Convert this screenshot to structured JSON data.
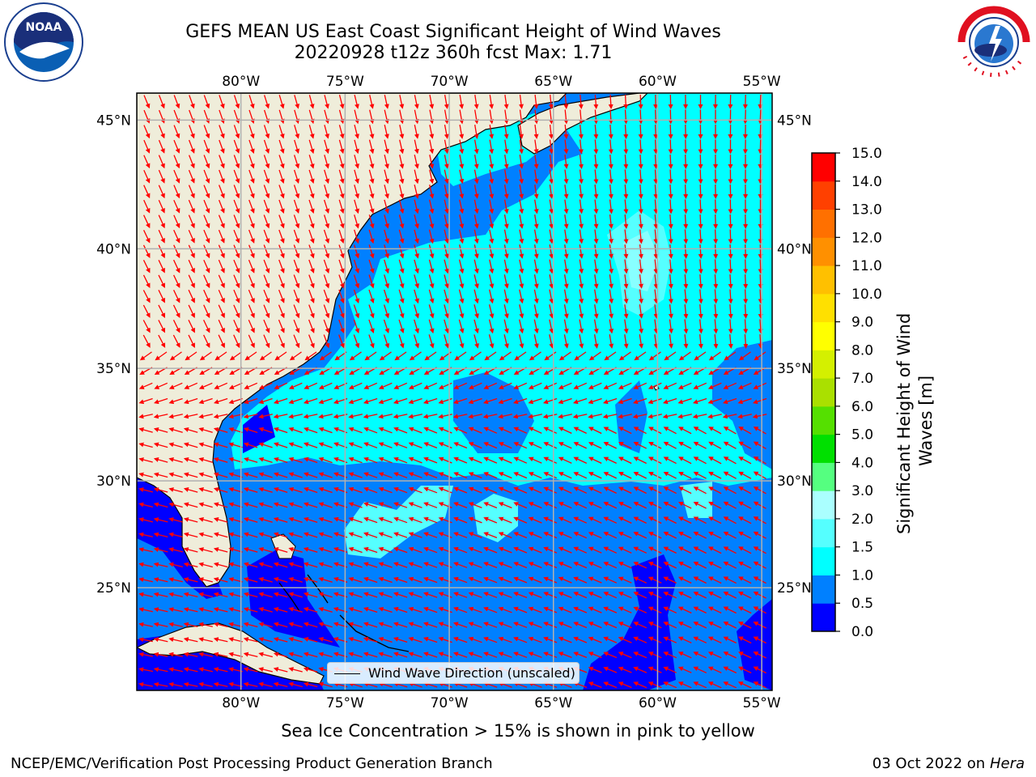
{
  "title": {
    "line1": "GEFS MEAN US East Coast Significant Height of Wind Waves",
    "line2": "20220928 t12z 360h fcst   Max: 1.71"
  },
  "logos": {
    "left": "noaa-logo",
    "right": "nws-logo"
  },
  "map": {
    "lon_labels": [
      "80°W",
      "75°W",
      "70°W",
      "65°W",
      "60°W",
      "55°W"
    ],
    "lat_labels": [
      "45°N",
      "40°N",
      "35°N",
      "30°N",
      "25°N"
    ],
    "lon_range": [
      -85,
      -54.5
    ],
    "lat_range": [
      20,
      46
    ],
    "colors": {
      "land": "#efedda",
      "lt05": "#0000ff",
      "lt10": "#0080ff",
      "lt15": "#00ffff",
      "lt20": "#55ffff",
      "arrows": "#ff0000",
      "grid": "#b0b0b0"
    },
    "legend_text": "Wind Wave Direction (unscaled)"
  },
  "colorbar": {
    "label_line1": "Significant Height of Wind",
    "label_line2": "Waves [m]",
    "ticks": [
      "0.0",
      "0.5",
      "1.0",
      "1.5",
      "2.0",
      "3.0",
      "4.0",
      "5.0",
      "6.0",
      "7.0",
      "8.0",
      "9.0",
      "10.0",
      "11.0",
      "12.0",
      "13.0",
      "14.0",
      "15.0"
    ],
    "colors": [
      "#0000ff",
      "#0080ff",
      "#00ffff",
      "#55ffff",
      "#aaffff",
      "#55ff80",
      "#00e000",
      "#55e000",
      "#aae000",
      "#d4f000",
      "#ffff00",
      "#ffe000",
      "#ffc000",
      "#ff9000",
      "#ff7000",
      "#ff4000",
      "#ff0000"
    ]
  },
  "note": "Sea Ice Concentration > 15% is shown in pink to yellow",
  "footer": {
    "left": "NCEP/EMC/Verification Post Processing Product Generation Branch",
    "right_date": "03 Oct 2022 on",
    "right_host": "Hera"
  }
}
